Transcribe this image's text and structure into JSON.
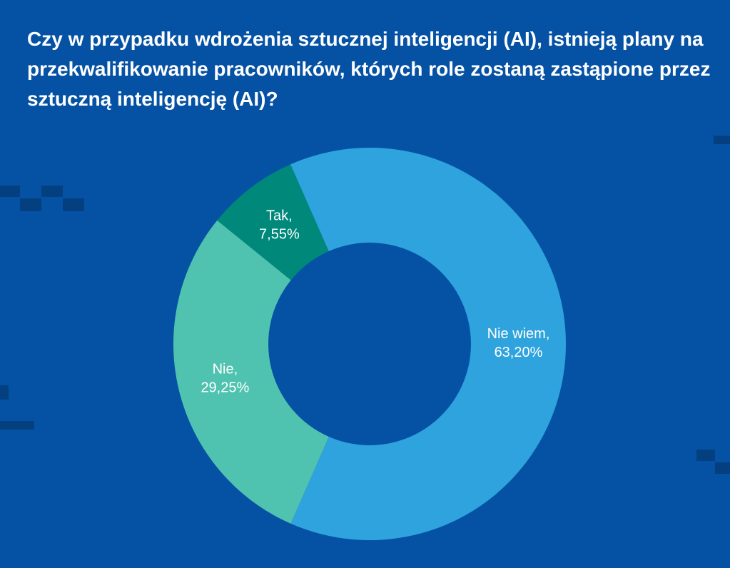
{
  "chart_data": {
    "type": "donut",
    "title": "Czy w przypadku wdrożenia sztucznej inteligencji (AI), istnieją plany na przekwalifikowanie pracowników, których role zostaną zastąpione przez sztuczną inteligencję (AI)?",
    "categories": [
      "Nie wiem,",
      "Nie,",
      "Tak,"
    ],
    "values": [
      63.2,
      29.25,
      7.55
    ],
    "value_labels": [
      "63,20%",
      "29,25%",
      "7,55%"
    ],
    "colors": [
      "#2fa3dd",
      "#50c3b0",
      "#00887a"
    ]
  }
}
